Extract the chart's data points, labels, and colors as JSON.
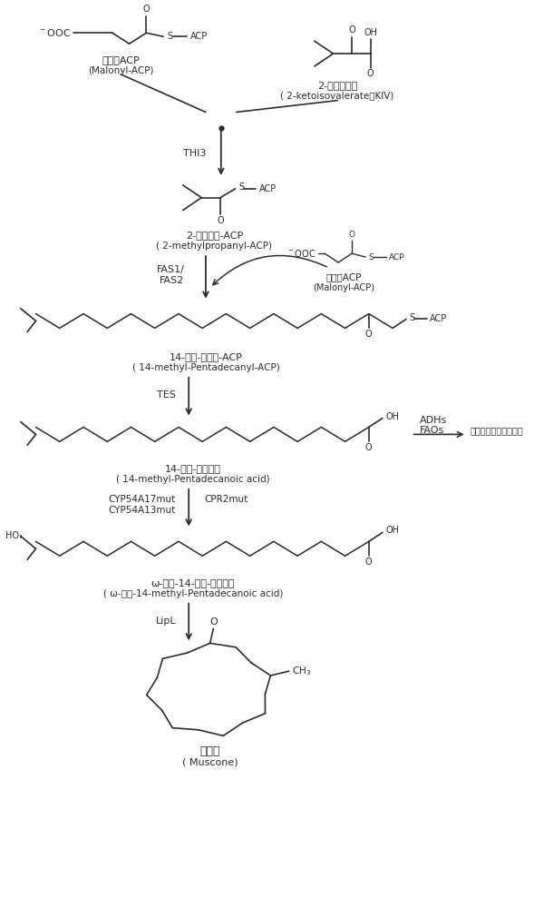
{
  "bg_color": "#ffffff",
  "line_color": "#2d2d2d",
  "text_color": "#2d2d2d",
  "compounds": {
    "malonyl_acp_label1": "丙二酰ACP",
    "malonyl_acp_label2": "(Malonyl-ACP)",
    "kiv_label1": "2-酮异戊酸盐",
    "kiv_label2": "( 2-ketoisovalerate，KIV)",
    "thi3_label": "THI3",
    "methylpropanyl_label1": "2-甲基丙烯-ACP",
    "methylpropanyl_label2": "( 2-methylpropanyl-ACP)",
    "fas_label1": "FAS1/",
    "fas_label2": "FAS2",
    "malonyl_acp2_label1": "丙二酰ACP",
    "malonyl_acp2_label2": "(Malonyl-ACP)",
    "pentadecanyl_label1": "14-甲基-十五酰-ACP",
    "pentadecanyl_label2": "( 14-methyl-Pentadecanyl-ACP)",
    "tes_label": "TES",
    "pentadecanoic_label1": "14-甲基-十五烷酸",
    "pentadecanoic_label2": "( 14-methyl-Pentadecanoic acid)",
    "adhs_label": "ADHs",
    "faos_label": "FAOs",
    "side_label": "脂肪酸还原酶化或氧化",
    "cyp_label1": "CYP54A17mut",
    "cyp_label2": "CYP54A13mut",
    "cpr_label": "CPR2mut",
    "hydroxyl_label1": "ω-羟基-14-甲基-十五烷酸",
    "hydroxyl_label2": "( ω-羟基-14-methyl-Pentadecanoic acid)",
    "lipl_label": "LipL",
    "muscone_label1": "麝香酮",
    "muscone_label2": "( Muscone)"
  }
}
